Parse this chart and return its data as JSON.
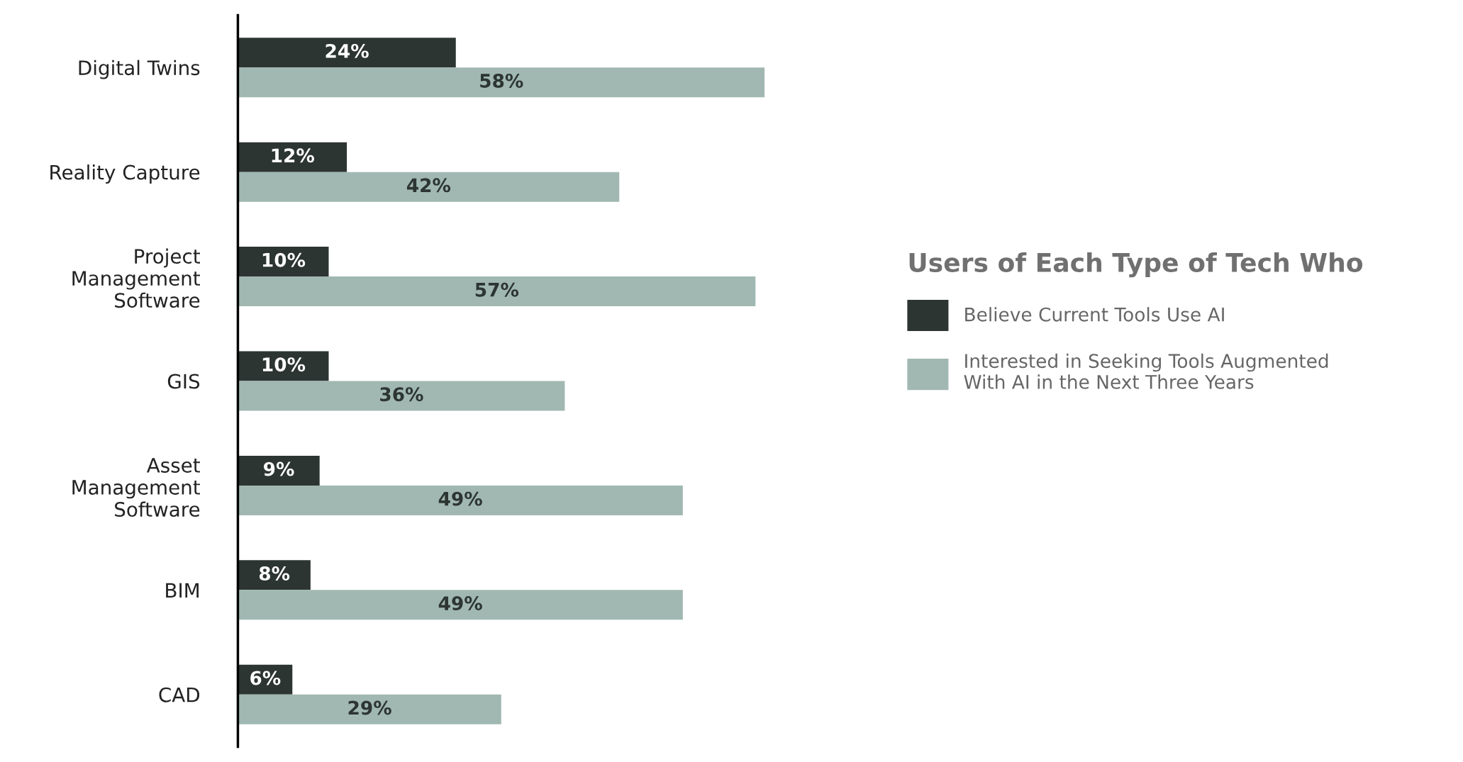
{
  "chart_data": {
    "type": "bar",
    "orientation": "horizontal",
    "categories": [
      "Digital Twins",
      "Reality Capture",
      "Project\nManagement\nSoftware",
      "GIS",
      "Asset\nManagement\nSoftware",
      "BIM",
      "CAD"
    ],
    "series": [
      {
        "name": "Believe Current Tools Use AI",
        "color": "#2d3532",
        "values": [
          24,
          12,
          10,
          10,
          9,
          8,
          6
        ],
        "value_labels": [
          "24%",
          "12%",
          "10%",
          "10%",
          "9%",
          "8%",
          "6%"
        ]
      },
      {
        "name": "Interested in Seeking Tools Augmented\nWith AI in the Next Three Years",
        "color": "#a1b8b2",
        "values": [
          58,
          42,
          57,
          36,
          49,
          49,
          29
        ],
        "value_labels": [
          "58%",
          "42%",
          "57%",
          "36%",
          "49%",
          "49%",
          "29%"
        ]
      }
    ],
    "legend": "right",
    "legend_title": "Users of Each Type of Tech Who",
    "tick_labels": "y",
    "grid": false
  }
}
